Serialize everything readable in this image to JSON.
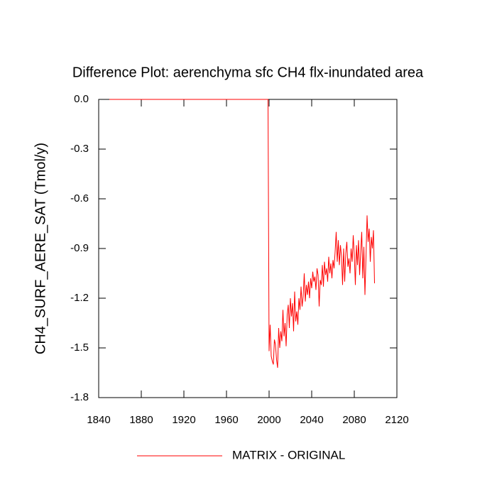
{
  "chart_data": {
    "type": "line",
    "title": "Difference Plot: aerenchyma sfc CH4 flx-inundated area",
    "y_label": "CH4_SURF_AERE_SAT  (Tmol/y)",
    "x": [
      1850,
      1999,
      2000,
      2001,
      2002,
      2003,
      2004,
      2005,
      2006,
      2007,
      2008,
      2009,
      2010,
      2011,
      2012,
      2013,
      2014,
      2015,
      2016,
      2017,
      2018,
      2019,
      2020,
      2021,
      2022,
      2023,
      2024,
      2025,
      2026,
      2027,
      2028,
      2029,
      2030,
      2031,
      2032,
      2033,
      2034,
      2035,
      2036,
      2037,
      2038,
      2039,
      2040,
      2041,
      2042,
      2043,
      2044,
      2045,
      2046,
      2047,
      2048,
      2049,
      2050,
      2051,
      2052,
      2053,
      2054,
      2055,
      2056,
      2057,
      2058,
      2059,
      2060,
      2061,
      2062,
      2063,
      2064,
      2065,
      2066,
      2067,
      2068,
      2069,
      2070,
      2071,
      2072,
      2073,
      2074,
      2075,
      2076,
      2077,
      2078,
      2079,
      2080,
      2081,
      2082,
      2083,
      2084,
      2085,
      2086,
      2087,
      2088,
      2089,
      2090,
      2091,
      2092,
      2093,
      2094,
      2095,
      2096,
      2097,
      2098,
      2099
    ],
    "series": [
      {
        "name": "MATRIX - ORIGINAL",
        "color": "#ff0000",
        "values": [
          0,
          0,
          -1.52,
          -1.36,
          -1.55,
          -1.58,
          -1.6,
          -1.45,
          -1.48,
          -1.57,
          -1.62,
          -1.38,
          -1.5,
          -1.4,
          -1.46,
          -1.27,
          -1.43,
          -1.35,
          -1.49,
          -1.3,
          -1.24,
          -1.38,
          -1.2,
          -1.31,
          -1.23,
          -1.4,
          -1.16,
          -1.34,
          -1.28,
          -1.36,
          -1.2,
          -1.27,
          -1.13,
          -1.25,
          -1.19,
          -1.05,
          -1.22,
          -1.12,
          -1.18,
          -1.1,
          -1.2,
          -1.08,
          -1.14,
          -1.04,
          -1.1,
          -1.07,
          -1.15,
          -1.02,
          -1.06,
          -1.25,
          -1.09,
          -1.12,
          -1.0,
          -1.13,
          -0.98,
          -1.06,
          -1.02,
          -1.1,
          -0.95,
          -1.05,
          -0.99,
          -1.08,
          -0.97,
          -1.02,
          -0.92,
          -0.8,
          -0.98,
          -0.85,
          -1.0,
          -0.88,
          -0.95,
          -1.12,
          -0.9,
          -1.1,
          -0.93,
          -0.86,
          -1.01,
          -0.96,
          -1.05,
          -0.9,
          -0.98,
          -0.82,
          -0.94,
          -1.12,
          -0.88,
          -1.0,
          -0.85,
          -1.06,
          -0.92,
          -0.8,
          -1.08,
          -0.89,
          -1.18,
          -0.95,
          -0.7,
          -0.86,
          -0.78,
          -0.98,
          -0.83,
          -0.9,
          -0.79,
          -1.11
        ]
      }
    ],
    "xlim": [
      1840,
      2120
    ],
    "xticks": [
      1840,
      1880,
      1920,
      1960,
      2000,
      2040,
      2080,
      2120
    ],
    "ylim": [
      -1.8,
      0
    ],
    "yticks": [
      {
        "value": 0,
        "label": "0.0"
      },
      -0.3,
      -0.6,
      -0.9,
      -1.2,
      -1.5,
      -1.8
    ],
    "legend": "bottom"
  }
}
